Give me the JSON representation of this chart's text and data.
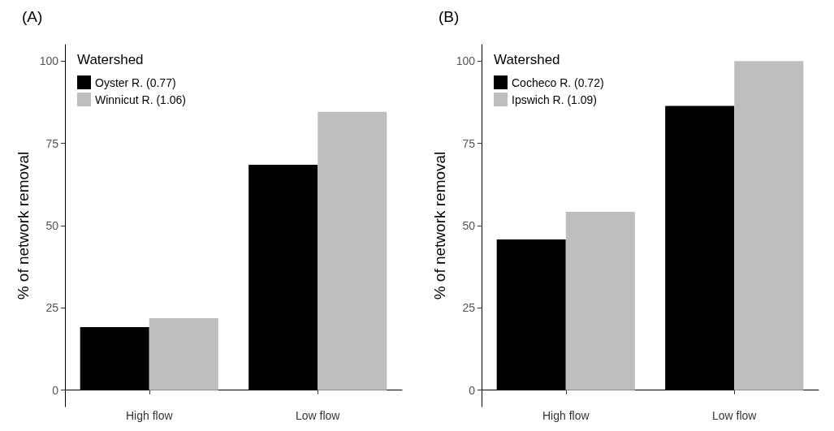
{
  "chart_data": [
    {
      "type": "bar",
      "title": "(A)",
      "ylabel": "% of network removal",
      "legend_title": "Watershed",
      "categories": [
        "High flow",
        "Low flow"
      ],
      "series": [
        {
          "name": "Oyster R. (0.77)",
          "color": "#000000",
          "values": [
            19.2,
            68.5
          ]
        },
        {
          "name": "Winnicut R. (1.06)",
          "color": "#bebebe",
          "values": [
            21.9,
            84.6
          ]
        }
      ],
      "ylim": [
        -5,
        105
      ],
      "yticks": [
        0,
        25,
        50,
        75,
        100
      ],
      "grid": false,
      "legend": "top left"
    },
    {
      "type": "bar",
      "title": "(B)",
      "ylabel": "% of network removal",
      "legend_title": "Watershed",
      "categories": [
        "High flow",
        "Low flow"
      ],
      "series": [
        {
          "name": "Cocheco R. (0.72)",
          "color": "#000000",
          "values": [
            45.8,
            86.4
          ]
        },
        {
          "name": "Ipswich R. (1.09)",
          "color": "#bebebe",
          "values": [
            54.2,
            100
          ]
        }
      ],
      "ylim": [
        -5,
        105
      ],
      "yticks": [
        0,
        25,
        50,
        75,
        100
      ],
      "grid": false,
      "legend": "top left"
    }
  ]
}
